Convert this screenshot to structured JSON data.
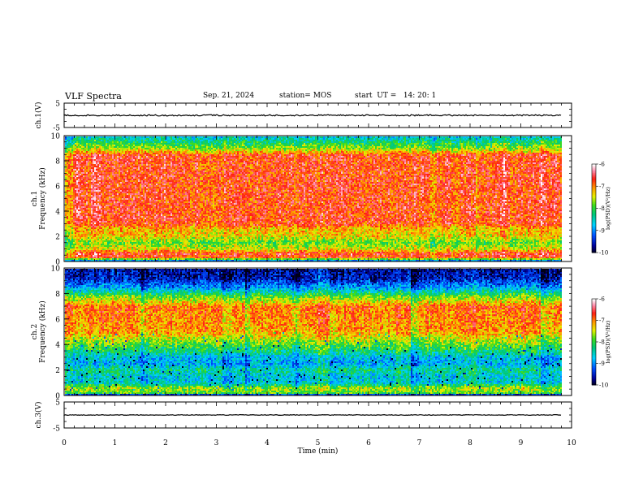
{
  "header": {
    "title": "VLF Spectra",
    "date": "Sep. 21, 2024",
    "station": "station= MOS",
    "start": "start  UT =   14: 20: 1"
  },
  "chart_data": [
    {
      "type": "line",
      "title": "",
      "ylabel": "ch.1(V)",
      "ylim": [
        -5,
        5
      ],
      "yticks": [
        "5",
        "-5"
      ],
      "xlim": [
        0,
        10
      ],
      "series": [
        {
          "values": [
            [
              0,
              0
            ],
            [
              9.8,
              0
            ]
          ]
        }
      ]
    },
    {
      "type": "heatmap",
      "ylabel": "ch.1\nFrequency (kHz)",
      "ylim": [
        0,
        10
      ],
      "yticks": [
        "0",
        "2",
        "4",
        "6",
        "8",
        "10"
      ],
      "xlim": [
        0,
        10
      ],
      "colorbar": {
        "label": "log(PSD)(V²/Hz)",
        "range": [
          -10,
          -6
        ],
        "ticks": [
          "-6",
          "-7",
          "-8",
          "-9",
          "-10"
        ]
      },
      "frequency_profile_khz": [
        [
          0,
          -9.5
        ],
        [
          0.3,
          -6.8
        ],
        [
          0.6,
          -6.6
        ],
        [
          1,
          -7.4
        ],
        [
          1.5,
          -7.8
        ],
        [
          2,
          -7.3
        ],
        [
          2.6,
          -7.2
        ],
        [
          3,
          -6.7
        ],
        [
          8.5,
          -6.7
        ],
        [
          9,
          -7.6
        ],
        [
          9.5,
          -8.1
        ],
        [
          10,
          -8.6
        ]
      ]
    },
    {
      "type": "heatmap",
      "ylabel": "ch.2\nFrequency (kHz)",
      "ylim": [
        0,
        10
      ],
      "yticks": [
        "0",
        "2",
        "4",
        "6",
        "8",
        "10"
      ],
      "xlim": [
        0,
        10
      ],
      "colorbar": {
        "label": "log(PSD)(V²/Hz)",
        "range": [
          -10,
          -6
        ],
        "ticks": [
          "-6",
          "-7",
          "-8",
          "-9",
          "-10"
        ]
      },
      "frequency_profile_khz": [
        [
          0,
          -10
        ],
        [
          0.2,
          -7.8
        ],
        [
          0.6,
          -7.6
        ],
        [
          1,
          -8.6
        ],
        [
          1.5,
          -8.6
        ],
        [
          2,
          -8.3
        ],
        [
          2.5,
          -8.8
        ],
        [
          3,
          -8.7
        ],
        [
          3.5,
          -8.2
        ],
        [
          4.2,
          -7.7
        ],
        [
          5,
          -7.1
        ],
        [
          7,
          -6.9
        ],
        [
          7.8,
          -7.8
        ],
        [
          8.5,
          -8.9
        ],
        [
          9.2,
          -9.5
        ],
        [
          10,
          -9.7
        ]
      ]
    },
    {
      "type": "line",
      "ylabel": "ch.3(V)",
      "ylim": [
        -5,
        5
      ],
      "yticks": [
        "5",
        "-5"
      ],
      "xlim": [
        0,
        10
      ],
      "xlabel": "Time (min)",
      "xticks": [
        "0",
        "1",
        "2",
        "3",
        "4",
        "5",
        "6",
        "7",
        "8",
        "9",
        "10"
      ],
      "series": [
        {
          "values": [
            [
              0,
              0
            ],
            [
              9.8,
              0
            ]
          ]
        }
      ]
    }
  ]
}
